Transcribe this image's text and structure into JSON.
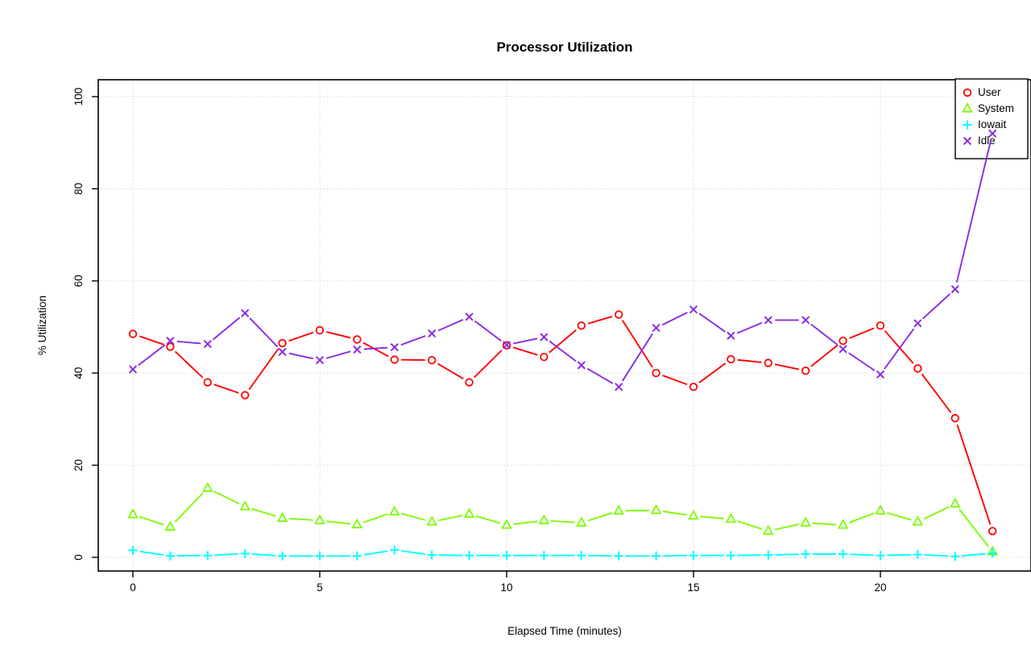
{
  "chart_data": {
    "type": "line",
    "title": "Processor Utilization",
    "xlabel": "Elapsed Time (minutes)",
    "ylabel": "% Utilization",
    "x": [
      0,
      1,
      2,
      3,
      4,
      5,
      6,
      7,
      8,
      9,
      10,
      11,
      12,
      13,
      14,
      15,
      16,
      17,
      18,
      19,
      20,
      21,
      22,
      23
    ],
    "xticks": [
      0,
      5,
      10,
      15,
      20
    ],
    "yticks": [
      0,
      20,
      40,
      60,
      80,
      100
    ],
    "xlim": [
      -1,
      24
    ],
    "ylim": [
      0,
      100
    ],
    "grid": "dotted-gray",
    "legend_position": "top-right",
    "series": [
      {
        "name": "User",
        "color": "#FF0000",
        "marker": "circle",
        "values": [
          48.5,
          45.7,
          38.0,
          35.2,
          46.5,
          49.3,
          47.3,
          42.9,
          42.8,
          38.0,
          46.0,
          43.5,
          50.3,
          52.7,
          40.0,
          37.0,
          43.0,
          42.2,
          40.5,
          47.0,
          50.3,
          41.0,
          30.2,
          5.7
        ]
      },
      {
        "name": "System",
        "color": "#7CFC00",
        "marker": "triangle",
        "values": [
          9.3,
          6.6,
          15.0,
          11.0,
          8.5,
          8.0,
          7.1,
          9.9,
          7.7,
          9.4,
          7.0,
          8.0,
          7.5,
          10.1,
          10.2,
          9.0,
          8.3,
          5.7,
          7.5,
          7.0,
          10.1,
          7.7,
          11.6,
          1.2
        ]
      },
      {
        "name": "Iowait",
        "color": "#00FFFF",
        "marker": "plus",
        "values": [
          1.5,
          0.3,
          0.4,
          0.8,
          0.3,
          0.3,
          0.3,
          1.6,
          0.5,
          0.4,
          0.4,
          0.4,
          0.4,
          0.3,
          0.3,
          0.4,
          0.4,
          0.5,
          0.7,
          0.7,
          0.4,
          0.6,
          0.2,
          0.9
        ]
      },
      {
        "name": "Idle",
        "color": "#8A2BE2",
        "marker": "x",
        "values": [
          40.8,
          47.0,
          46.3,
          53.0,
          44.6,
          42.8,
          45.1,
          45.6,
          48.6,
          52.2,
          46.1,
          47.8,
          41.7,
          37.0,
          49.8,
          53.8,
          48.1,
          51.5,
          51.5,
          45.2,
          39.7,
          50.8,
          58.2,
          92.0
        ]
      }
    ]
  },
  "colors": {
    "grid": "#C8C8C8",
    "axis": "#000000",
    "background": "#FFFFFF"
  }
}
